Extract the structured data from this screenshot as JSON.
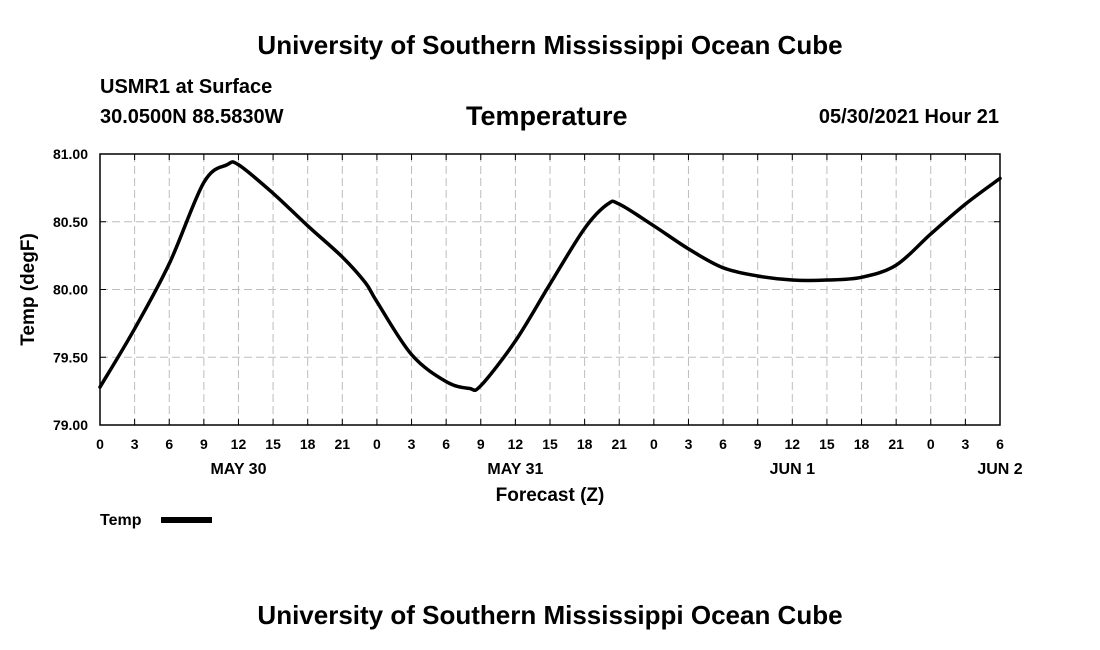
{
  "header": {
    "title": "University of Southern Mississippi Ocean Cube",
    "station": "USMR1 at Surface",
    "coordinates": "30.0500N  88.5830W",
    "datetime": "05/30/2021 Hour 21"
  },
  "footer": {
    "title": "University of Southern Mississippi Ocean Cube"
  },
  "chart_data": {
    "type": "line",
    "title": "Temperature",
    "xlabel": "Forecast (Z)",
    "ylabel": "Temp (degF)",
    "ylim": [
      79.0,
      81.0
    ],
    "y_ticks": [
      "79.00",
      "79.50",
      "80.00",
      "80.50",
      "81.00"
    ],
    "x_tick_labels": [
      "0",
      "3",
      "6",
      "9",
      "12",
      "15",
      "18",
      "21",
      "0",
      "3",
      "6",
      "9",
      "12",
      "15",
      "18",
      "21",
      "0",
      "3",
      "6",
      "9",
      "12",
      "15",
      "18",
      "21",
      "0",
      "3",
      "6"
    ],
    "date_labels": [
      {
        "label": "MAY 30",
        "hour_index": 4
      },
      {
        "label": "MAY 31",
        "hour_index": 12
      },
      {
        "label": "JUN 1",
        "hour_index": 20
      },
      {
        "label": "JUN 2",
        "hour_index": 26
      }
    ],
    "grid": true,
    "legend": [
      {
        "name": "Temp",
        "color": "#000000"
      }
    ],
    "series": [
      {
        "name": "Temp",
        "x_unit": "forecast hours from 00Z May 30",
        "x": [
          0,
          3,
          6,
          9,
          11,
          12,
          15,
          18,
          21,
          23,
          24,
          27,
          30,
          32,
          33,
          36,
          39,
          42,
          44,
          45,
          48,
          51,
          54,
          57,
          60,
          63,
          66,
          69,
          72,
          75,
          78
        ],
        "values": [
          79.28,
          79.71,
          80.19,
          80.79,
          80.92,
          80.92,
          80.71,
          80.47,
          80.24,
          80.05,
          79.91,
          79.52,
          79.32,
          79.27,
          79.29,
          79.62,
          80.04,
          80.45,
          80.63,
          80.63,
          80.47,
          80.3,
          80.16,
          80.1,
          80.07,
          80.07,
          80.09,
          80.18,
          80.41,
          80.63,
          80.82
        ]
      }
    ]
  }
}
